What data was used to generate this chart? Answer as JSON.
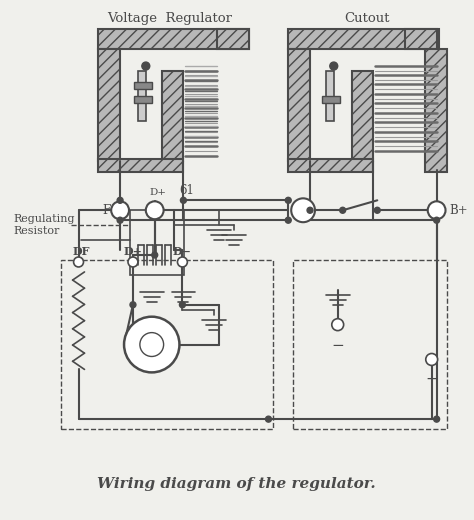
{
  "title": "Wiring diagram of the regulator.",
  "bg_color": "#f0f0ec",
  "line_color": "#4a4a4a",
  "hatch_color": "#6a6a6a",
  "fig_width": 4.74,
  "fig_height": 5.2,
  "labels": {
    "voltage_regulator": "Voltage  Regulator",
    "cutout": "Cutout",
    "regulating_resistor": "Regulating\nResistor",
    "F": "F",
    "Dp": "D+",
    "s61": "61",
    "Bp": "B+",
    "DF": "DF",
    "Dp2": "D+",
    "Dm": "D−"
  }
}
